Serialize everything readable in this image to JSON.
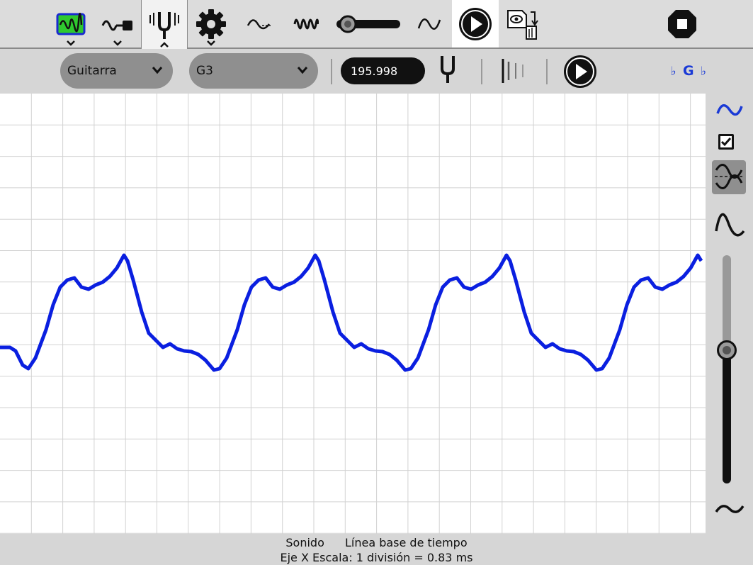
{
  "toolbar": {
    "buttons": [
      {
        "name": "oscilloscope-menu-button",
        "icon": "waveform-screen-icon",
        "active": true
      },
      {
        "name": "sensor-menu-button",
        "icon": "probe-icon"
      },
      {
        "name": "tuning-menu-button",
        "icon": "tuning-fork-icon",
        "selected": true
      },
      {
        "name": "settings-menu-button",
        "icon": "gear-icon"
      },
      {
        "name": "sine-wave-button",
        "icon": "sine-wave-icon"
      },
      {
        "name": "frequency-wave-button",
        "icon": "dense-wave-icon"
      },
      {
        "name": "sample-rate-slider",
        "icon": "horizontal-slider-icon"
      },
      {
        "name": "wave-toggle-button",
        "icon": "wave-icon"
      },
      {
        "name": "play-button",
        "icon": "play-icon"
      },
      {
        "name": "capture-button",
        "icon": "eye-copy-icon"
      },
      {
        "name": "stop-button",
        "icon": "stop-icon"
      }
    ]
  },
  "tuning": {
    "instrument": "Guitarra",
    "note": "G3",
    "frequency": "195.998",
    "note_display": {
      "flat_left": "♭",
      "note": "G",
      "flat_right": "♭"
    }
  },
  "colors": {
    "trace": "#0a1fe0",
    "grid": "#d2d2d2",
    "accent_green": "#2fc92f",
    "accent_blue": "#1a3ad6"
  },
  "status": {
    "mode": "Sonido",
    "baseline": "Línea base de tiempo",
    "scale": "Eje X Escala: 1 división = 0.83 ms"
  }
}
